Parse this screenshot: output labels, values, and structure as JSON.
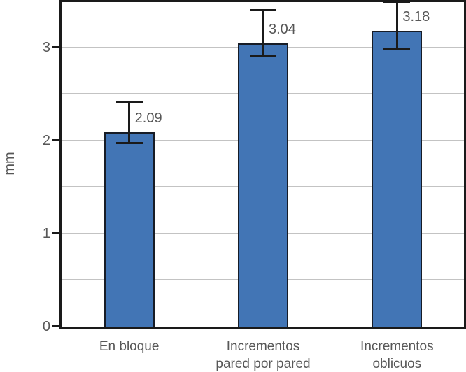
{
  "figure": {
    "background": "#ffffff"
  },
  "chart_data": {
    "type": "bar",
    "title": "",
    "xlabel": "",
    "ylabel": "mm",
    "categories": [
      "En bloque",
      "Incrementos\npared por pared",
      "Incrementos\noblicuos"
    ],
    "values": [
      2.09,
      3.04,
      3.18
    ],
    "value_labels": [
      "2.09",
      "3.04",
      "3.18"
    ],
    "error_bars": {
      "low": [
        1.98,
        2.92,
        3.0
      ],
      "high": [
        2.42,
        3.41,
        3.5
      ],
      "high_clipped_at_axis_max": [
        false,
        false,
        true
      ]
    },
    "ylim": [
      0,
      3.5
    ],
    "yticks": [
      0,
      1,
      2,
      3
    ],
    "ytick_labels": [
      "0",
      "1",
      "2",
      "3"
    ],
    "gridline_step": 0.5,
    "grid": true,
    "legend_position": "none",
    "colors": {
      "bar_fill": "#4275B5",
      "bar_border": "#171c26",
      "error_bar": "#1a1a1a",
      "axis": "#1a1a1a",
      "gridline": "#c3c3c3",
      "text": "#575757"
    }
  }
}
